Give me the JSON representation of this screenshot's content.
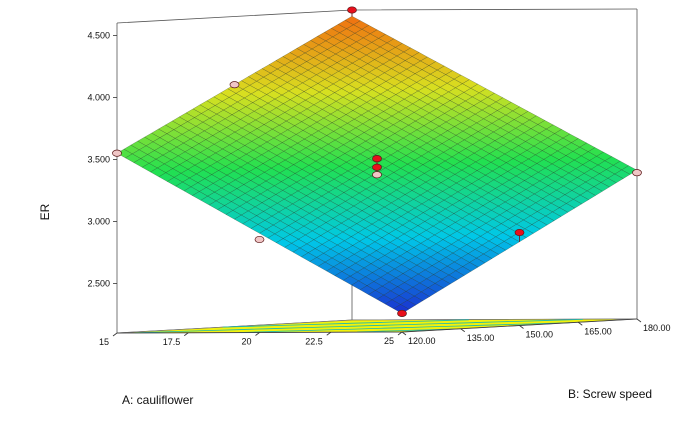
{
  "chart_data": {
    "type": "surface3d",
    "zlabel": "ER",
    "xlabel": "A: cauliflower",
    "ylabel": "B: Screw speed",
    "x_ticks": [
      "15",
      "17.5",
      "20",
      "22.5",
      "25"
    ],
    "y_ticks": [
      "120.00",
      "135.00",
      "150.00",
      "165.00",
      "180.00"
    ],
    "z_ticks": [
      "2.500",
      "3.000",
      "3.500",
      "4.000",
      "4.500"
    ],
    "xlim": [
      15,
      25
    ],
    "ylim": [
      120,
      180
    ],
    "zlim": [
      2.1,
      4.6
    ],
    "surface_corners": [
      {
        "x": 15,
        "y": 120,
        "z": 3.55
      },
      {
        "x": 15,
        "y": 180,
        "z": 4.55
      },
      {
        "x": 25,
        "y": 180,
        "z": 3.3
      },
      {
        "x": 25,
        "y": 120,
        "z": 2.25
      }
    ],
    "design_points": [
      {
        "x": 15,
        "y": 180,
        "z": 4.6,
        "above_surface": true
      },
      {
        "x": 15,
        "y": 150,
        "z": 4.05,
        "above_surface": false
      },
      {
        "x": 15,
        "y": 120,
        "z": 3.55,
        "above_surface": false
      },
      {
        "x": 20,
        "y": 150,
        "z": 3.45,
        "above_surface": true
      },
      {
        "x": 20,
        "y": 150,
        "z": 3.38,
        "above_surface": true
      },
      {
        "x": 20,
        "y": 150,
        "z": 3.32,
        "above_surface": false
      },
      {
        "x": 25,
        "y": 180,
        "z": 3.28,
        "above_surface": false
      },
      {
        "x": 20,
        "y": 120,
        "z": 2.85,
        "above_surface": false
      },
      {
        "x": 25,
        "y": 150,
        "z": 2.85,
        "above_surface": true
      },
      {
        "x": 25,
        "y": 120,
        "z": 2.25,
        "above_surface": true
      }
    ],
    "colormap": [
      "#1a2fd0",
      "#00c8e8",
      "#22e050",
      "#d8e020",
      "#f07010"
    ],
    "floor_color": "#f2f20c",
    "floor_contour_color": "#18b8b0",
    "point_above_color": "#e8101c",
    "point_below_color": "#f0c6c6",
    "grid_lines": 34
  }
}
